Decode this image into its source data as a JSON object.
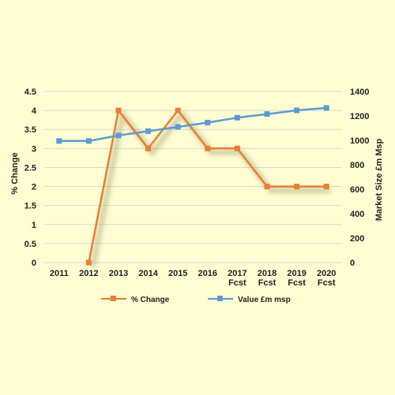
{
  "colors": {
    "background": "#FFFDD2",
    "grid": "#D8D8D0",
    "pct_change": "#ED7D31",
    "value": "#5B9BD5"
  },
  "chart_data": {
    "type": "line",
    "categories": [
      [
        "2011"
      ],
      [
        "2012"
      ],
      [
        "2013"
      ],
      [
        "2014"
      ],
      [
        "2015"
      ],
      [
        "2016"
      ],
      [
        "2017",
        "Fcst"
      ],
      [
        "2018",
        "Fcst"
      ],
      [
        "2019",
        "Fcst"
      ],
      [
        "2020",
        "Fcst"
      ]
    ],
    "ylabel": "% Change",
    "y2label": "Market Size £m Msp",
    "ylim": [
      0,
      4.5
    ],
    "y2lim": [
      0,
      1400
    ],
    "yticks": [
      "0",
      "0.5",
      "1",
      "1.5",
      "2",
      "2.5",
      "3",
      "3.5",
      "4",
      "4.5"
    ],
    "y2ticks": [
      "0",
      "200",
      "400",
      "600",
      "800",
      "1000",
      "1200",
      "1400"
    ],
    "grid": true,
    "legend_position": "bottom",
    "series": [
      {
        "name": "% Change",
        "axis": "left",
        "marker": "square",
        "values": [
          null,
          0,
          4,
          3,
          4,
          3,
          3,
          2,
          2,
          2
        ]
      },
      {
        "name": "Value £m msp",
        "axis": "right",
        "marker": "square",
        "values": [
          995,
          995,
          1040,
          1075,
          1110,
          1145,
          1185,
          1215,
          1245,
          1265
        ]
      }
    ]
  }
}
